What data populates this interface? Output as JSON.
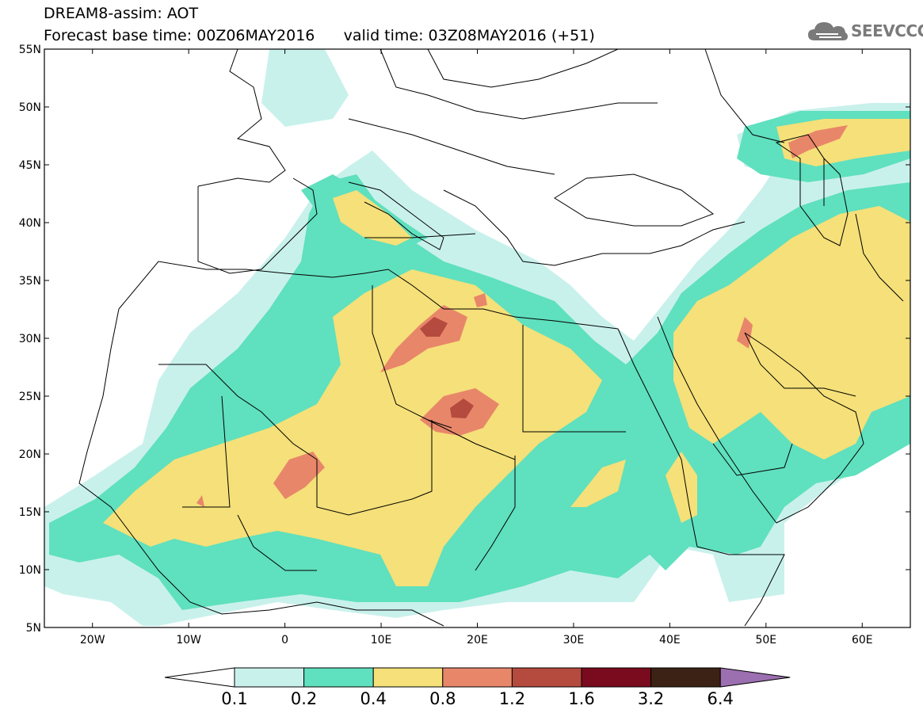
{
  "title": {
    "line1": "DREAM8-assim: AOT",
    "line2": "Forecast base time: 00Z06MAY2016      valid time: 03Z08MAY2016 (+51)"
  },
  "logo": {
    "text": "SEEVCCC",
    "icon": "cloud-icon",
    "color": "#7a7a7a"
  },
  "map": {
    "lat_ticks": [
      "55N",
      "50N",
      "45N",
      "40N",
      "35N",
      "30N",
      "25N",
      "20N",
      "15N",
      "10N",
      "5N"
    ],
    "lon_ticks": [
      "20W",
      "10W",
      "0",
      "10E",
      "20E",
      "30E",
      "40E",
      "50E",
      "60E"
    ],
    "lat_range": [
      5,
      55
    ],
    "lon_range": [
      -25,
      65
    ]
  },
  "colorbar": {
    "labels": [
      "0.1",
      "0.2",
      "0.4",
      "0.8",
      "1.2",
      "1.6",
      "3.2",
      "6.4"
    ],
    "colors": [
      "#ffffff",
      "#c9f1ec",
      "#5fe0be",
      "#f5e079",
      "#e8866a",
      "#b54a3e",
      "#7a0a1e",
      "#3b2214",
      "#9b6fb0"
    ]
  }
}
